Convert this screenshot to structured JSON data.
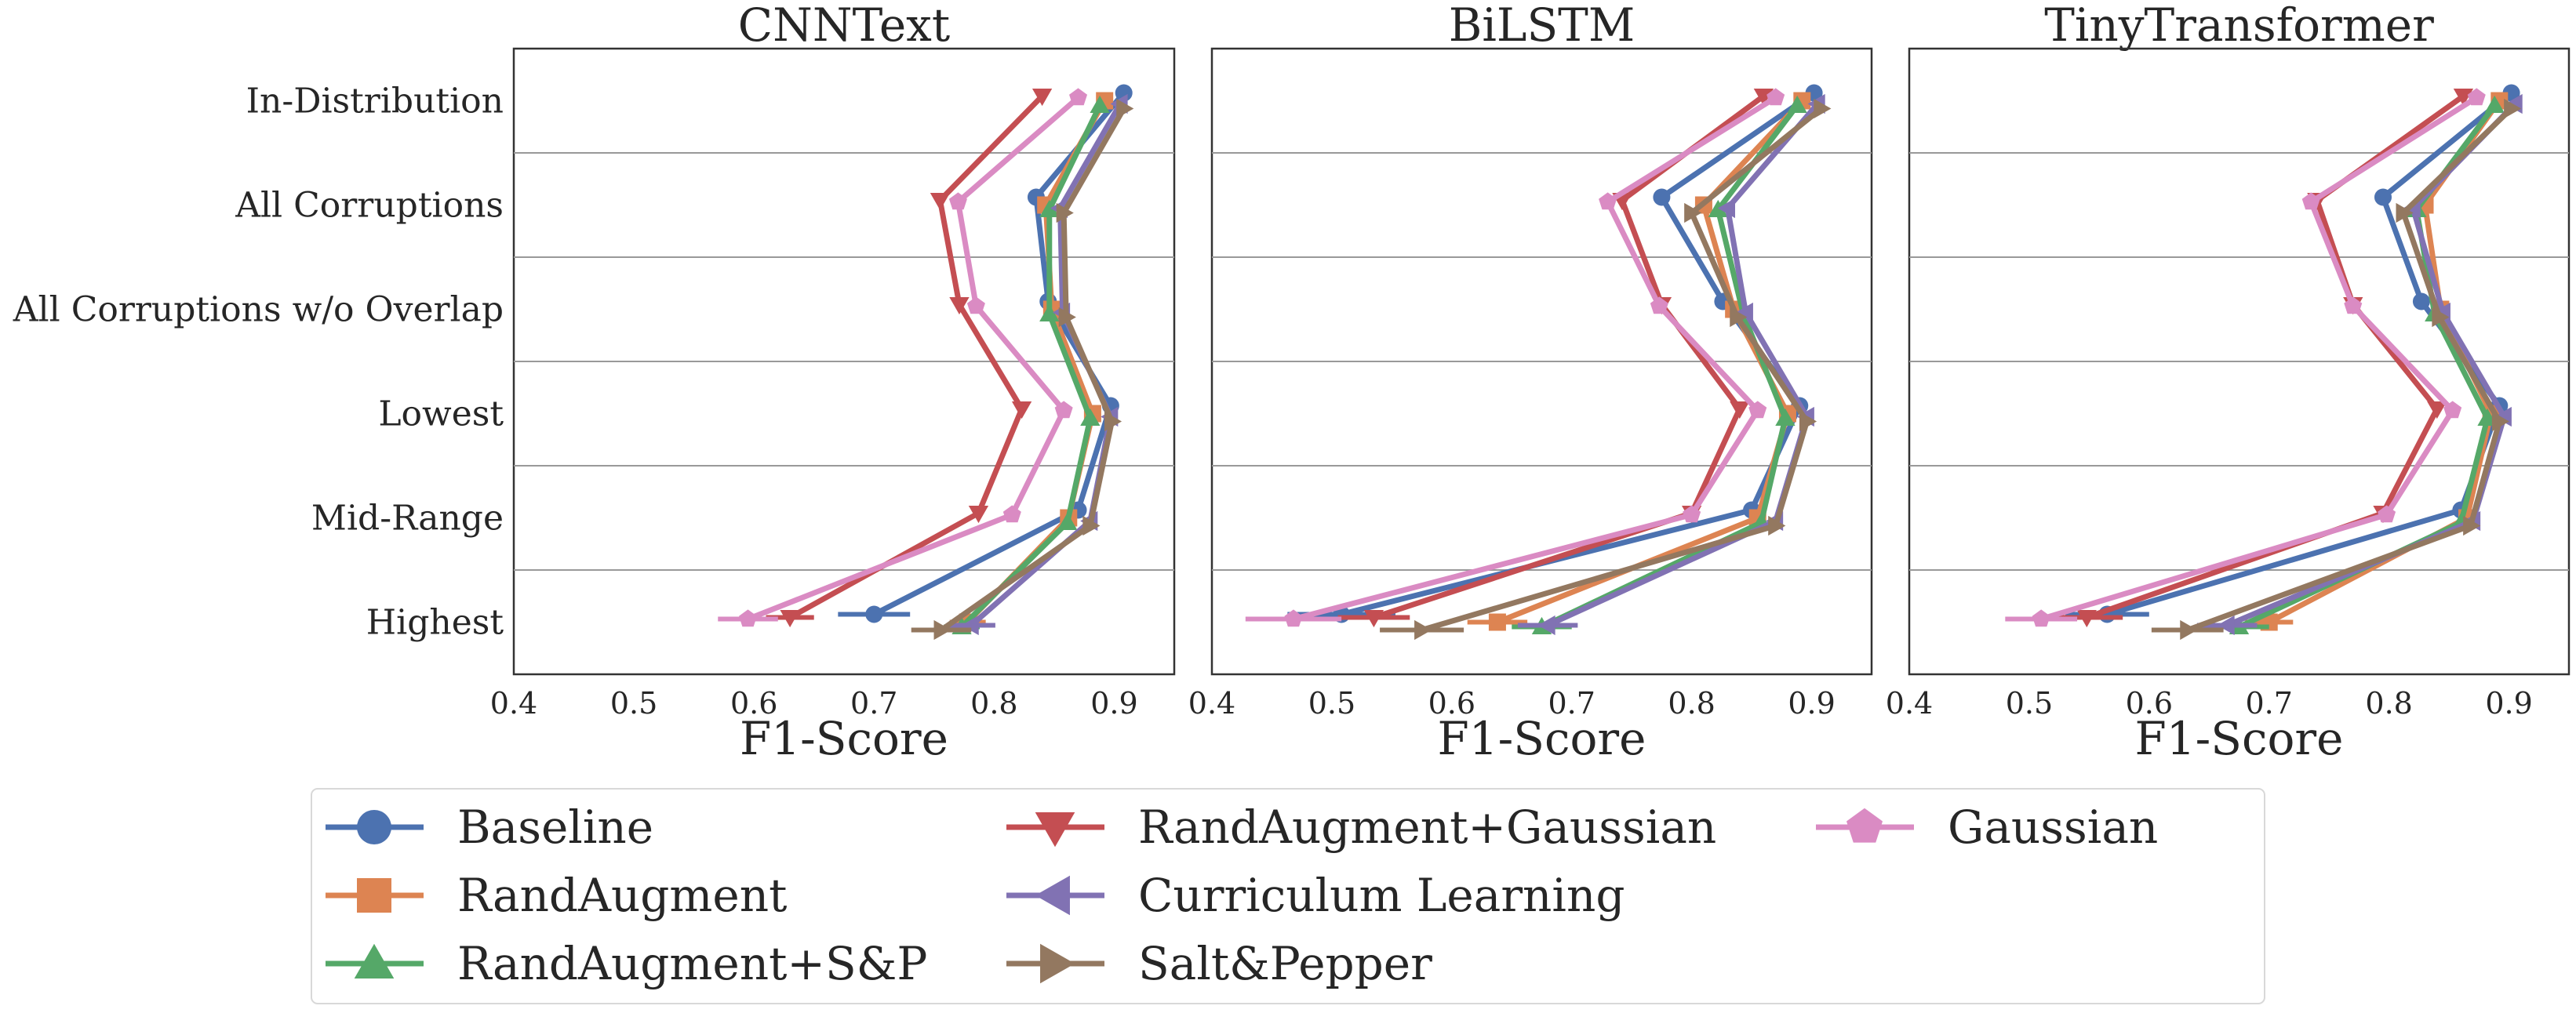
{
  "chart_data": {
    "type": "line",
    "orientation": "horizontal",
    "xlabel": "F1-Score",
    "xlim": [
      0.4,
      0.95
    ],
    "xticks": [
      "0.4",
      "0.5",
      "0.6",
      "0.7",
      "0.8",
      "0.9"
    ],
    "categories": [
      "In-Distribution",
      "All Corruptions",
      "All Corruptions w/o Overlap",
      "Lowest",
      "Mid-Range",
      "Highest"
    ],
    "legend": {
      "placement": "bottom",
      "columns": 3
    },
    "colors": {
      "Baseline": "#4c72b0",
      "RandAugment": "#dd8452",
      "RandAugment+S&P": "#55a868",
      "RandAugment+Gaussian": "#c44e52",
      "Curriculum Learning": "#8172b3",
      "Salt&Pepper": "#937860",
      "Gaussian": "#da8bc3"
    },
    "markers": {
      "Baseline": "circle",
      "RandAugment": "square",
      "RandAugment+S&P": "triangle-up",
      "RandAugment+Gaussian": "triangle-down",
      "Curriculum Learning": "triangle-left",
      "Salt&Pepper": "triangle-right",
      "Gaussian": "pentagon"
    },
    "series_order": [
      "Baseline",
      "RandAugment",
      "RandAugment+S&P",
      "RandAugment+Gaussian",
      "Curriculum Learning",
      "Salt&Pepper",
      "Gaussian"
    ],
    "panels": [
      {
        "title": "CNNText",
        "series": [
          {
            "name": "Baseline",
            "values": [
              0.908,
              0.835,
              0.845,
              0.897,
              0.87,
              0.7
            ],
            "err": [
              0,
              0,
              0,
              0,
              0,
              0.03
            ]
          },
          {
            "name": "RandAugment",
            "values": [
              0.892,
              0.843,
              0.848,
              0.882,
              0.862,
              0.778
            ],
            "err": [
              0,
              0,
              0,
              0,
              0,
              0.015
            ]
          },
          {
            "name": "RandAugment+S&P",
            "values": [
              0.888,
              0.846,
              0.846,
              0.88,
              0.861,
              0.773
            ],
            "err": [
              0,
              0,
              0,
              0,
              0,
              0.015
            ]
          },
          {
            "name": "RandAugment+Gaussian",
            "values": [
              0.84,
              0.755,
              0.771,
              0.823,
              0.787,
              0.63
            ],
            "err": [
              0,
              0,
              0,
              0,
              0,
              0.02
            ]
          },
          {
            "name": "Curriculum Learning",
            "values": [
              0.905,
              0.855,
              0.857,
              0.897,
              0.88,
              0.781
            ],
            "err": [
              0,
              0,
              0,
              0,
              0,
              0.02
            ]
          },
          {
            "name": "Salt&Pepper",
            "values": [
              0.908,
              0.858,
              0.86,
              0.898,
              0.88,
              0.756
            ],
            "err": [
              0,
              0,
              0,
              0,
              0,
              0.025
            ]
          },
          {
            "name": "Gaussian",
            "values": [
              0.87,
              0.77,
              0.785,
              0.858,
              0.815,
              0.595
            ],
            "err": [
              0,
              0,
              0,
              0,
              0,
              0.025
            ]
          }
        ]
      },
      {
        "title": "BiLSTM",
        "series": [
          {
            "name": "Baseline",
            "values": [
              0.902,
              0.775,
              0.826,
              0.89,
              0.85,
              0.508
            ],
            "err": [
              0,
              0,
              0,
              0,
              0,
              0.045
            ]
          },
          {
            "name": "RandAugment",
            "values": [
              0.892,
              0.81,
              0.835,
              0.88,
              0.855,
              0.638
            ],
            "err": [
              0,
              0,
              0,
              0,
              0,
              0.025
            ]
          },
          {
            "name": "RandAugment+S&P",
            "values": [
              0.888,
              0.822,
              0.843,
              0.878,
              0.858,
              0.675
            ],
            "err": [
              0,
              0,
              0,
              0,
              0,
              0.025
            ]
          },
          {
            "name": "RandAugment+Gaussian",
            "values": [
              0.86,
              0.742,
              0.775,
              0.84,
              0.8,
              0.535
            ],
            "err": [
              0,
              0,
              0,
              0,
              0,
              0.03
            ]
          },
          {
            "name": "Curriculum Learning",
            "values": [
              0.905,
              0.83,
              0.845,
              0.896,
              0.87,
              0.68
            ],
            "err": [
              0,
              0,
              0,
              0,
              0,
              0.025
            ]
          },
          {
            "name": "Salt&Pepper",
            "values": [
              0.908,
              0.8,
              0.838,
              0.896,
              0.87,
              0.575
            ],
            "err": [
              0,
              0,
              0,
              0,
              0,
              0.035
            ]
          },
          {
            "name": "Gaussian",
            "values": [
              0.87,
              0.73,
              0.773,
              0.855,
              0.8,
              0.468
            ],
            "err": [
              0,
              0,
              0,
              0,
              0,
              0.04
            ]
          }
        ]
      },
      {
        "title": "TinyTransformer",
        "series": [
          {
            "name": "Baseline",
            "values": [
              0.902,
              0.795,
              0.827,
              0.892,
              0.86,
              0.565
            ],
            "err": [
              0,
              0,
              0,
              0,
              0,
              0.035
            ]
          },
          {
            "name": "RandAugment",
            "values": [
              0.892,
              0.83,
              0.843,
              0.885,
              0.865,
              0.7
            ],
            "err": [
              0,
              0,
              0,
              0,
              0,
              0.02
            ]
          },
          {
            "name": "RandAugment+S&P",
            "values": [
              0.888,
              0.823,
              0.838,
              0.882,
              0.86,
              0.675
            ],
            "err": [
              0,
              0,
              0,
              0,
              0,
              0.025
            ]
          },
          {
            "name": "RandAugment+Gaussian",
            "values": [
              0.862,
              0.74,
              0.77,
              0.84,
              0.795,
              0.548
            ],
            "err": [
              0,
              0,
              0,
              0,
              0,
              0.03
            ]
          },
          {
            "name": "Curriculum Learning",
            "values": [
              0.905,
              0.82,
              0.845,
              0.896,
              0.87,
              0.665
            ],
            "err": [
              0,
              0,
              0,
              0,
              0,
              0.025
            ]
          },
          {
            "name": "Salt&Pepper",
            "values": [
              0.902,
              0.812,
              0.842,
              0.892,
              0.868,
              0.632
            ],
            "err": [
              0,
              0,
              0,
              0,
              0,
              0.03
            ]
          },
          {
            "name": "Gaussian",
            "values": [
              0.873,
              0.735,
              0.77,
              0.853,
              0.798,
              0.51
            ],
            "err": [
              0,
              0,
              0,
              0,
              0,
              0.03
            ]
          }
        ]
      }
    ]
  }
}
